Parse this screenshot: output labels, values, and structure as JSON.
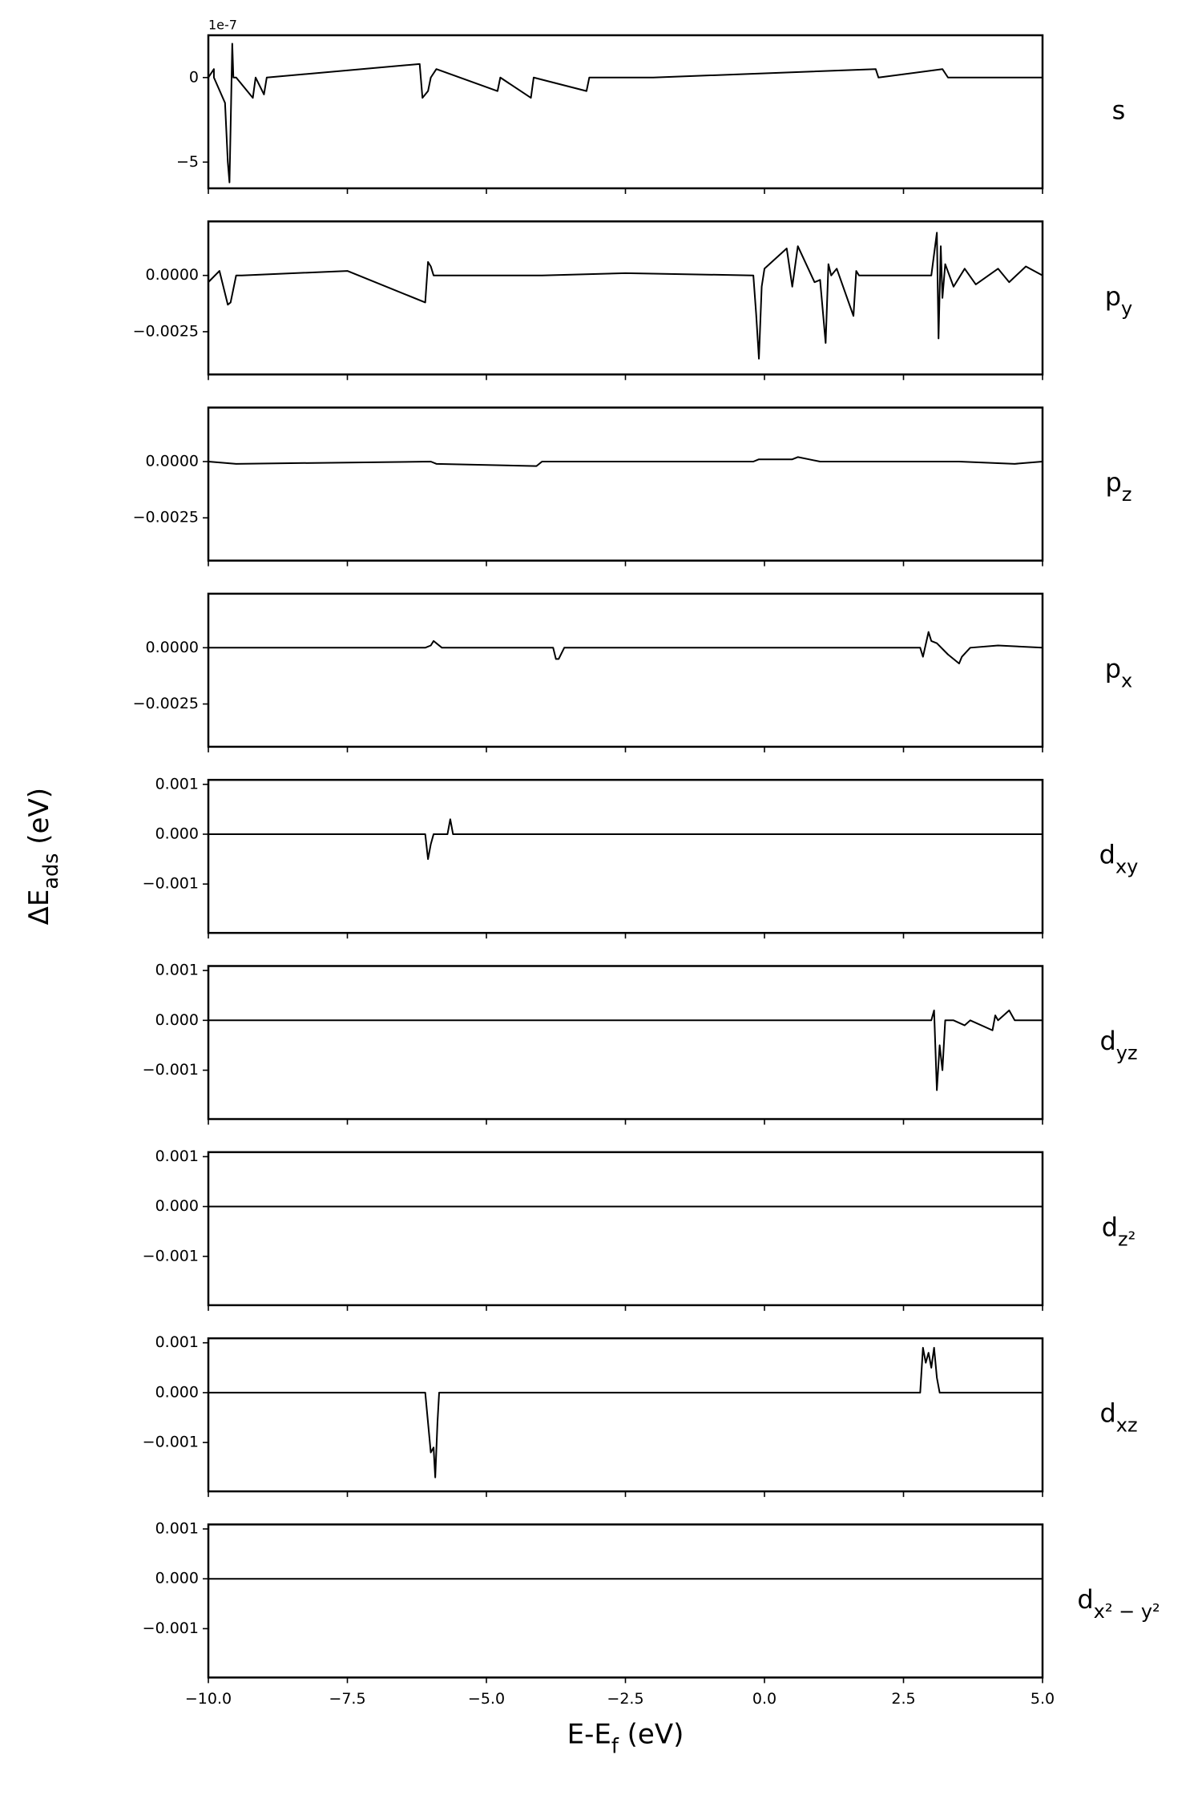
{
  "figure": {
    "xlabel": [
      {
        "text": "E-E"
      },
      {
        "text": "f",
        "sub": true
      },
      {
        "text": " (eV)"
      }
    ],
    "ylabel": [
      {
        "text": "ΔE"
      },
      {
        "text": "ads",
        "sub": true
      },
      {
        "text": " (eV)"
      }
    ]
  },
  "chart_data": [
    {
      "type": "line",
      "title": [
        {
          "text": "s"
        }
      ],
      "color": "#000000",
      "offset_label": "1e-7",
      "xlim": [
        -10,
        5
      ],
      "xticks": [
        -10,
        -7.5,
        -5,
        -2.5,
        0,
        2.5,
        5
      ],
      "ylim": [
        -6.55e-07,
        2.5e-07
      ],
      "yticks": [
        {
          "value": -5e-07,
          "label": "−5"
        },
        0
      ],
      "x": [
        -10,
        -9.9,
        -9.9,
        -9.7,
        -9.65,
        -9.62,
        -9.6,
        -9.57,
        -9.55,
        -9.5,
        -9.2,
        -9.15,
        -9.0,
        -8.95,
        -6.2,
        -6.15,
        -6.05,
        -6.0,
        -5.9,
        -4.8,
        -4.75,
        -4.2,
        -4.15,
        -3.2,
        -3.15,
        -2.0,
        2.0,
        2.05,
        3.2,
        3.3,
        5
      ],
      "values": [
        0,
        5e-08,
        0,
        -1.5e-07,
        -5e-07,
        -6.2e-07,
        -3e-07,
        2e-07,
        0,
        0,
        -1.2e-07,
        0,
        -1e-07,
        0,
        8e-08,
        -1.2e-07,
        -8e-08,
        0,
        5e-08,
        -8e-08,
        0,
        -1.2e-07,
        0,
        -8e-08,
        0,
        0,
        5e-08,
        0,
        5e-08,
        0,
        0
      ]
    },
    {
      "type": "line",
      "title": [
        {
          "text": "p"
        },
        {
          "text": "y",
          "sub": true
        }
      ],
      "color": "#000000",
      "xlim": [
        -10,
        5
      ],
      "xticks": [
        -10,
        -7.5,
        -5,
        -2.5,
        0,
        2.5,
        5
      ],
      "ylim": [
        -0.0044,
        0.0024
      ],
      "yticks": [
        {
          "value": -0.0025,
          "label": "−0.0025"
        },
        {
          "value": 0,
          "label": "0.0000"
        }
      ],
      "x": [
        -10,
        -9.8,
        -9.65,
        -9.6,
        -9.5,
        -9.4,
        -7.5,
        -7.3,
        -6.1,
        -6.05,
        -6.0,
        -5.95,
        -5.8,
        -4,
        -2.5,
        -0.2,
        -0.15,
        -0.1,
        -0.05,
        0,
        0.4,
        0.5,
        0.6,
        0.9,
        1.0,
        1.1,
        1.15,
        1.2,
        1.3,
        1.6,
        1.65,
        1.7,
        2,
        3.0,
        3.1,
        3.13,
        3.17,
        3.2,
        3.25,
        3.4,
        3.6,
        3.8,
        4.2,
        4.4,
        4.7,
        5
      ],
      "values": [
        -0.0003,
        0.0002,
        -0.0013,
        -0.0012,
        0,
        0,
        0.0002,
        0,
        -0.0012,
        0.0006,
        0.0004,
        0,
        0,
        0,
        0.0001,
        0,
        -0.0017,
        -0.0037,
        -0.0005,
        0.0003,
        0.0012,
        -0.0005,
        0.0013,
        -0.0003,
        -0.0002,
        -0.003,
        0.0005,
        0,
        0.0003,
        -0.0018,
        0.0002,
        0,
        0,
        0,
        0.0019,
        -0.0028,
        0.0013,
        -0.001,
        0.0005,
        -0.0005,
        0.0003,
        -0.0004,
        0.0003,
        -0.0003,
        0.0004,
        0
      ]
    },
    {
      "type": "line",
      "title": [
        {
          "text": "p"
        },
        {
          "text": "z",
          "sub": true
        }
      ],
      "color": "#000000",
      "xlim": [
        -10,
        5
      ],
      "xticks": [
        -10,
        -7.5,
        -5,
        -2.5,
        0,
        2.5,
        5
      ],
      "ylim": [
        -0.0044,
        0.0024
      ],
      "yticks": [
        {
          "value": -0.0025,
          "label": "−0.0025"
        },
        {
          "value": 0,
          "label": "0.0000"
        }
      ],
      "x": [
        -10,
        -9.5,
        -6,
        -5.9,
        -4.1,
        -4,
        -0.2,
        -0.1,
        0.5,
        0.6,
        0.8,
        1,
        2.5,
        3.5,
        4.5,
        5
      ],
      "values": [
        0,
        -0.0001,
        0,
        -0.0001,
        -0.0002,
        0,
        0,
        0.0001,
        0.0001,
        0.0002,
        0.0001,
        0,
        0,
        0,
        -0.0001,
        0
      ]
    },
    {
      "type": "line",
      "title": [
        {
          "text": "p"
        },
        {
          "text": "x",
          "sub": true
        }
      ],
      "color": "#000000",
      "xlim": [
        -10,
        5
      ],
      "xticks": [
        -10,
        -7.5,
        -5,
        -2.5,
        0,
        2.5,
        5
      ],
      "ylim": [
        -0.0044,
        0.0024
      ],
      "yticks": [
        {
          "value": -0.0025,
          "label": "−0.0025"
        },
        {
          "value": 0,
          "label": "0.0000"
        }
      ],
      "x": [
        -10,
        -6.1,
        -6.0,
        -5.95,
        -5.8,
        -3.8,
        -3.75,
        -3.7,
        -3.6,
        2.8,
        2.85,
        2.95,
        3.0,
        3.1,
        3.3,
        3.5,
        3.55,
        3.7,
        4.2,
        5
      ],
      "values": [
        0,
        0,
        0.0001,
        0.0003,
        0,
        0,
        -0.0005,
        -0.0005,
        0,
        0,
        -0.0004,
        0.0007,
        0.0003,
        0.0002,
        -0.0003,
        -0.0007,
        -0.0004,
        0,
        0.0001,
        0
      ]
    },
    {
      "type": "line",
      "title": [
        {
          "text": "d"
        },
        {
          "text": "xy",
          "sub": true
        }
      ],
      "color": "#000000",
      "xlim": [
        -10,
        5
      ],
      "xticks": [
        -10,
        -7.5,
        -5,
        -2.5,
        0,
        2.5,
        5
      ],
      "ylim": [
        -0.00198,
        0.00109
      ],
      "yticks": [
        {
          "value": -0.001,
          "label": "−0.001"
        },
        {
          "value": 0,
          "label": "0.000"
        },
        0.001
      ],
      "x": [
        -10,
        -6.1,
        -6.05,
        -6.0,
        -5.95,
        -5.7,
        -5.65,
        -5.6,
        -5.55,
        3,
        5
      ],
      "values": [
        0,
        0,
        -0.0005,
        -0.0002,
        0,
        0,
        0.0003,
        0,
        0,
        0,
        0
      ]
    },
    {
      "type": "line",
      "title": [
        {
          "text": "d"
        },
        {
          "text": "yz",
          "sub": true
        }
      ],
      "color": "#000000",
      "xlim": [
        -10,
        5
      ],
      "xticks": [
        -10,
        -7.5,
        -5,
        -2.5,
        0,
        2.5,
        5
      ],
      "ylim": [
        -0.00198,
        0.00109
      ],
      "yticks": [
        {
          "value": -0.001,
          "label": "−0.001"
        },
        {
          "value": 0,
          "label": "0.000"
        },
        0.001
      ],
      "x": [
        -10,
        3.0,
        3.05,
        3.1,
        3.15,
        3.2,
        3.25,
        3.3,
        3.4,
        3.6,
        3.7,
        4.1,
        4.15,
        4.2,
        4.3,
        4.4,
        4.5,
        5
      ],
      "values": [
        0,
        0,
        0.0002,
        -0.0014,
        -0.0005,
        -0.001,
        0,
        0,
        0,
        -0.0001,
        0,
        -0.0002,
        0.0001,
        0,
        0.0001,
        0.0002,
        0,
        0
      ]
    },
    {
      "type": "line",
      "title": [
        {
          "text": "d"
        },
        {
          "text": "z²",
          "sub": true
        }
      ],
      "color": "#000000",
      "xlim": [
        -10,
        5
      ],
      "xticks": [
        -10,
        -7.5,
        -5,
        -2.5,
        0,
        2.5,
        5
      ],
      "ylim": [
        -0.00198,
        0.00109
      ],
      "yticks": [
        {
          "value": -0.001,
          "label": "−0.001"
        },
        {
          "value": 0,
          "label": "0.000"
        },
        0.001
      ],
      "x": [
        -10,
        5
      ],
      "values": [
        0,
        0
      ]
    },
    {
      "type": "line",
      "title": [
        {
          "text": "d"
        },
        {
          "text": "xz",
          "sub": true
        }
      ],
      "color": "#000000",
      "xlim": [
        -10,
        5
      ],
      "xticks": [
        -10,
        -7.5,
        -5,
        -2.5,
        0,
        2.5,
        5
      ],
      "ylim": [
        -0.00198,
        0.00109
      ],
      "yticks": [
        {
          "value": -0.001,
          "label": "−0.001"
        },
        {
          "value": 0,
          "label": "0.000"
        },
        0.001
      ],
      "x": [
        -10,
        -6.1,
        -6.05,
        -6.0,
        -5.95,
        -5.92,
        -5.88,
        -5.85,
        2.8,
        2.85,
        2.9,
        2.95,
        3.0,
        3.05,
        3.1,
        3.15,
        5
      ],
      "values": [
        0,
        0,
        -0.0006,
        -0.0012,
        -0.0011,
        -0.0017,
        -0.0006,
        0,
        0,
        0.0009,
        0.0006,
        0.0008,
        0.0005,
        0.0009,
        0.0003,
        0,
        0
      ]
    },
    {
      "type": "line",
      "title": [
        {
          "text": "d"
        },
        {
          "text": "x² − y²",
          "sub": true
        }
      ],
      "color": "#000000",
      "xlim": [
        -10,
        5
      ],
      "xticks": [
        {
          "value": -10,
          "label": "−10.0"
        },
        {
          "value": -7.5,
          "label": "−7.5"
        },
        {
          "value": -5,
          "label": "−5.0"
        },
        {
          "value": -2.5,
          "label": "−2.5"
        },
        {
          "value": 0,
          "label": "0.0"
        },
        {
          "value": 2.5,
          "label": "2.5"
        },
        {
          "value": 5,
          "label": "5.0"
        }
      ],
      "ylim": [
        -0.00198,
        0.00109
      ],
      "yticks": [
        {
          "value": -0.001,
          "label": "−0.001"
        },
        {
          "value": 0,
          "label": "0.000"
        },
        0.001
      ],
      "x": [
        -10,
        5
      ],
      "values": [
        0,
        0
      ]
    }
  ]
}
